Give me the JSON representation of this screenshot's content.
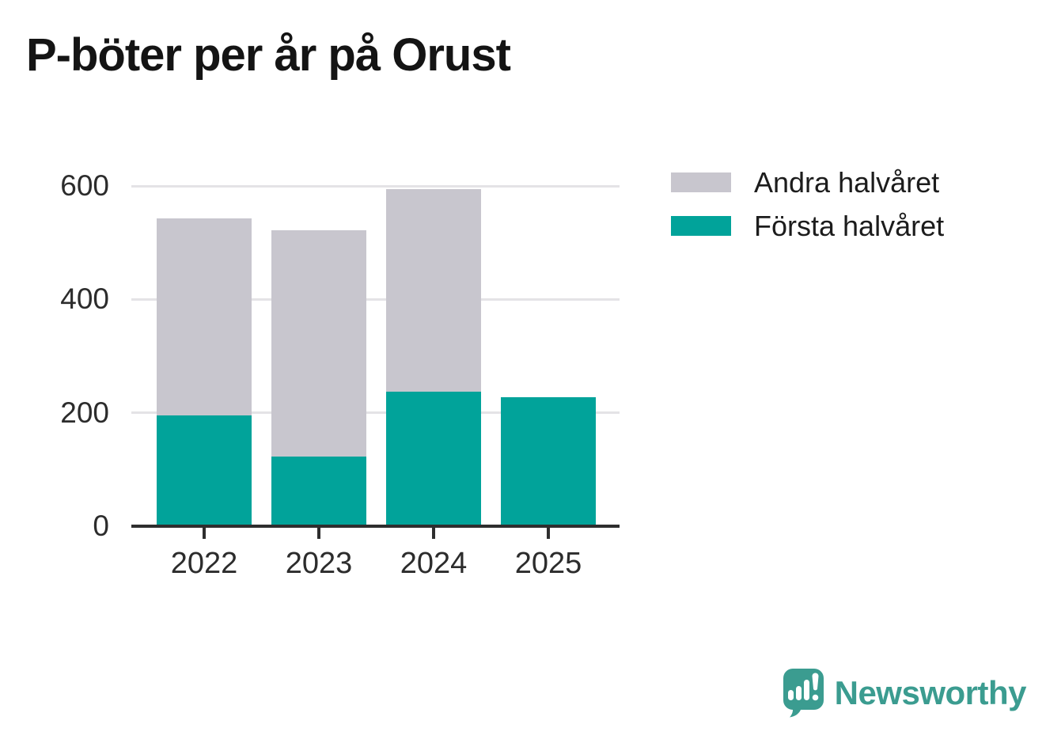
{
  "chart_data": {
    "type": "bar",
    "stacked": true,
    "title": "P-böter per år på Orust",
    "categories": [
      "2022",
      "2023",
      "2024",
      "2025"
    ],
    "series": [
      {
        "key": "forsta-halvaret",
        "name": "Första halvåret",
        "color": "#01a39a",
        "values": [
          196,
          123,
          237,
          228
        ]
      },
      {
        "key": "andra-halvaret",
        "name": "Andra halvåret",
        "color": "#c8c6ce",
        "values": [
          347,
          399,
          357,
          0
        ]
      }
    ],
    "totals": [
      543,
      522,
      594,
      228
    ],
    "xlabel": "",
    "ylabel": "",
    "ylim": [
      0,
      600
    ],
    "yticks": [
      0,
      200,
      400,
      600
    ],
    "grid": true,
    "legend_position": "top-right"
  },
  "legend": {
    "items": [
      {
        "label": "Andra halvåret",
        "color": "#c8c6ce"
      },
      {
        "label": "Första halvåret",
        "color": "#01a39a"
      }
    ]
  },
  "branding": {
    "text": "Newsworthy",
    "icon": "newsworthy-chart-bubble-icon",
    "color": "#3b9c90"
  },
  "colors": {
    "first_half": "#01a39a",
    "second_half": "#c8c6ce",
    "gridline": "#e4e3e6",
    "axis": "#2e2e2e",
    "background": "#ffffff"
  }
}
